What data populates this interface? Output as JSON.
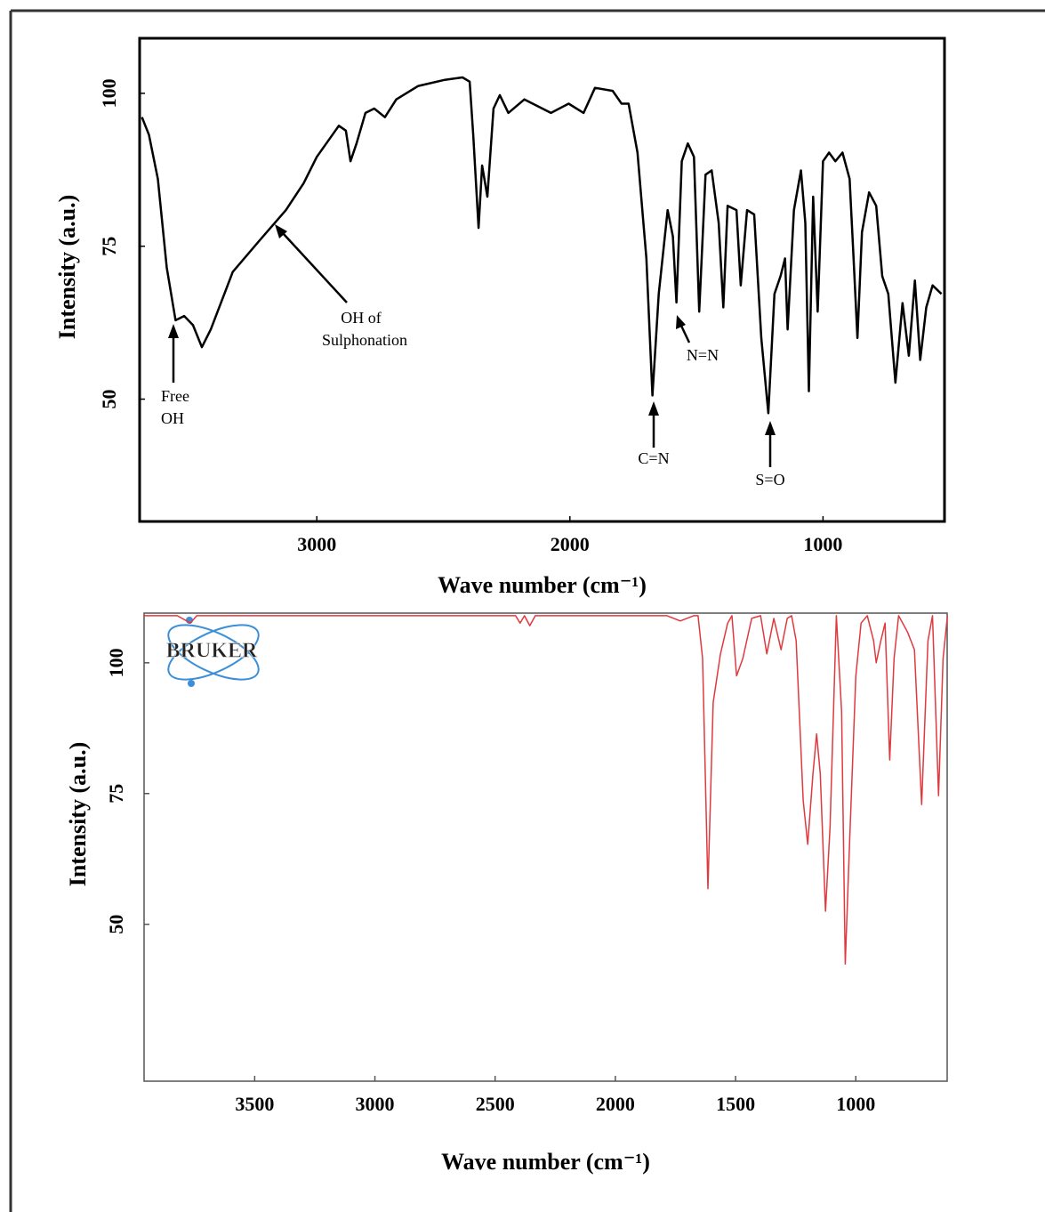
{
  "chart_data": [
    {
      "type": "line",
      "xlabel": "Wave number (cm⁻¹)",
      "ylabel": "Intensity (a.u.)",
      "xlim": [
        3700,
        520
      ],
      "ylim": [
        30,
        109
      ],
      "xticks": [
        3000,
        2000,
        1000
      ],
      "yticks": [
        50,
        75,
        100
      ],
      "series": [
        {
          "color": "#000000",
          "x": [
            3691,
            3663,
            3628,
            3593,
            3558,
            3524,
            3489,
            3454,
            3419,
            3332,
            3227,
            3122,
            3052,
            3000,
            2913,
            2885,
            2867,
            2843,
            2808,
            2773,
            2731,
            2686,
            2599,
            2494,
            2424,
            2396,
            2382,
            2361,
            2347,
            2326,
            2302,
            2277,
            2243,
            2180,
            2075,
            2005,
            1946,
            1901,
            1831,
            1796,
            1768,
            1733,
            1698,
            1674,
            1649,
            1614,
            1593,
            1579,
            1558,
            1534,
            1510,
            1489,
            1464,
            1440,
            1412,
            1394,
            1377,
            1342,
            1325,
            1300,
            1272,
            1244,
            1216,
            1192,
            1168,
            1150,
            1140,
            1115,
            1087,
            1070,
            1056,
            1039,
            1021,
            1000,
            976,
            951,
            923,
            895,
            881,
            864,
            846,
            818,
            790,
            766,
            742,
            714,
            686,
            661,
            637,
            616,
            592,
            567,
            532
          ],
          "values": [
            96.1,
            93.2,
            86,
            71.5,
            62.9,
            63.6,
            62.1,
            58.5,
            61.4,
            70.8,
            75.9,
            80.9,
            85.3,
            89.6,
            94.7,
            93.9,
            88.9,
            91.8,
            96.8,
            97.5,
            96.1,
            99,
            101.2,
            102.2,
            102.6,
            101.9,
            93.2,
            78,
            88.2,
            83.1,
            97.5,
            99.7,
            96.8,
            99,
            96.8,
            98.3,
            96.8,
            100.9,
            100.4,
            98.3,
            98.3,
            90.3,
            73,
            50.6,
            67.2,
            80.9,
            76.6,
            65.8,
            88.9,
            91.8,
            89.6,
            64.3,
            86.7,
            87.4,
            78.8,
            65,
            81.6,
            80.9,
            68.6,
            80.9,
            80.2,
            60,
            47.7,
            67.2,
            70.1,
            73,
            61.4,
            80.9,
            87.4,
            78.8,
            51.3,
            83.1,
            64.3,
            88.9,
            90.3,
            88.9,
            90.3,
            86,
            74.4,
            60,
            77.3,
            83.8,
            81.6,
            70.1,
            67.2,
            52.7,
            65.7,
            57.1,
            69.4,
            56.4,
            65,
            68.6,
            67.2
          ]
        }
      ],
      "annotations": [
        {
          "lines": [
            "Free",
            "OH"
          ]
        },
        {
          "lines": [
            "OH of",
            "Sulphonation"
          ]
        },
        {
          "lines": [
            "N=N"
          ]
        },
        {
          "lines": [
            "C=N"
          ]
        },
        {
          "lines": [
            "S=O"
          ]
        }
      ]
    },
    {
      "type": "line",
      "xlabel": "Wave number (cm⁻¹)",
      "ylabel": "Intensity (a.u.)",
      "logo": "BRUKER",
      "xlim": [
        3960,
        620
      ],
      "ylim": [
        20,
        109.5
      ],
      "xticks": [
        3500,
        3000,
        2500,
        2000,
        1500,
        1000
      ],
      "yticks": [
        50,
        75,
        100
      ],
      "series": [
        {
          "color": "#e0393e",
          "x": [
            3963,
            3822,
            3767,
            3741,
            3674,
            3452,
            2415,
            2396,
            2378,
            2356,
            2333,
            1785,
            1730,
            1674,
            1656,
            1637,
            1615,
            1593,
            1563,
            1533,
            1515,
            1496,
            1470,
            1433,
            1396,
            1370,
            1341,
            1311,
            1285,
            1267,
            1248,
            1219,
            1200,
            1178,
            1163,
            1148,
            1126,
            1107,
            1081,
            1059,
            1044,
            1026,
            1000,
            978,
            952,
            926,
            915,
            896,
            878,
            859,
            841,
            822,
            785,
            756,
            726,
            700,
            681,
            656,
            637,
            619
          ],
          "values": [
            109,
            109,
            107.6,
            109,
            109,
            109,
            109,
            107.6,
            109,
            107.1,
            109,
            109,
            108,
            109,
            109,
            100.8,
            56.8,
            92.4,
            101.7,
            107.6,
            109,
            97.5,
            100.8,
            108.5,
            109,
            101.7,
            108.5,
            102.5,
            108.5,
            109,
            104.2,
            73.7,
            65.3,
            78.8,
            86.4,
            78.8,
            52.5,
            68.6,
            109,
            90.7,
            42.4,
            65.3,
            97.5,
            107.6,
            109,
            104.2,
            100,
            104.2,
            107.6,
            81.4,
            100.8,
            109,
            105.9,
            102.5,
            72.9,
            104.2,
            109,
            74.6,
            100.8,
            109
          ]
        }
      ]
    }
  ]
}
